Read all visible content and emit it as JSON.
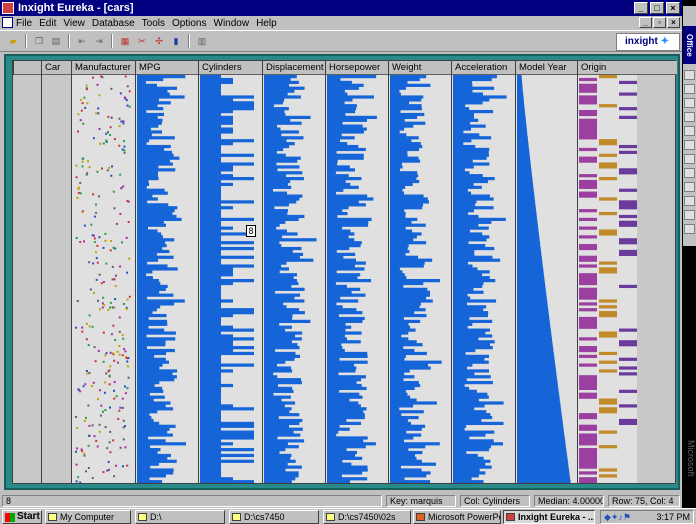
{
  "window": {
    "title": "Inxight Eureka - [cars]"
  },
  "menu": [
    "File",
    "Edit",
    "View",
    "Database",
    "Tools",
    "Options",
    "Window",
    "Help"
  ],
  "toolbar": {
    "logo_text": "inxight"
  },
  "columns": [
    {
      "label": "Car",
      "type": "empty"
    },
    {
      "label": "Manufacturer",
      "type": "dots"
    },
    {
      "label": "MPG",
      "type": "bars"
    },
    {
      "label": "Cylinders",
      "type": "bars"
    },
    {
      "label": "Displacement",
      "type": "bars"
    },
    {
      "label": "Horsepower",
      "type": "bars"
    },
    {
      "label": "Weight",
      "type": "bars"
    },
    {
      "label": "Acceleration",
      "type": "bars"
    },
    {
      "label": "Model Year",
      "type": "sorted"
    },
    {
      "label": "Origin",
      "type": "categorical"
    }
  ],
  "colors": {
    "bar": "#1565d8",
    "origin_a": "#9b3fa0",
    "origin_b": "#c08a2a",
    "origin_c": "#6a3a9c"
  },
  "tooltip": "8",
  "status": {
    "left": "8",
    "key": "Key: marquis",
    "col": "Col: Cylinders",
    "median": "Median: 4.000000",
    "rowcol": "Row: 75, Col: 4"
  },
  "officebar": {
    "title": "Office",
    "watermark": "Microsoft"
  },
  "taskbar": {
    "start": "Start",
    "tasks": [
      "My Computer",
      "D:\\",
      "D:\\cs7450",
      "D:\\cs7450\\02s",
      "Microsoft PowerPoin...",
      "Inxight Eureka - ..."
    ],
    "time": "3:17 PM"
  }
}
